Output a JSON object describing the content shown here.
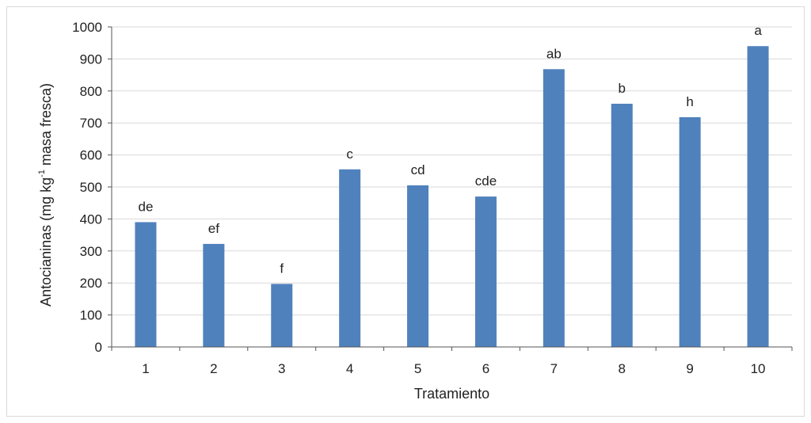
{
  "chart_data": {
    "type": "bar",
    "categories": [
      "1",
      "2",
      "3",
      "4",
      "5",
      "6",
      "7",
      "8",
      "9",
      "10"
    ],
    "values": [
      390,
      322,
      197,
      555,
      505,
      470,
      868,
      760,
      718,
      940
    ],
    "data_labels": [
      "de",
      "ef",
      "f",
      "c",
      "cd",
      "cde",
      "ab",
      "b",
      "h",
      "a"
    ],
    "xlabel": "Tratamiento",
    "ylabel_pre": "Antocianinas  (mg kg",
    "ylabel_sup": "-1",
    "ylabel_post": " masa fresca)",
    "ylim": [
      0,
      1000
    ],
    "yticks": [
      0,
      100,
      200,
      300,
      400,
      500,
      600,
      700,
      800,
      900,
      1000
    ],
    "grid": true,
    "legend": "none",
    "bar_color": "#4f81bd",
    "grid_color": "#d9d9d9"
  }
}
